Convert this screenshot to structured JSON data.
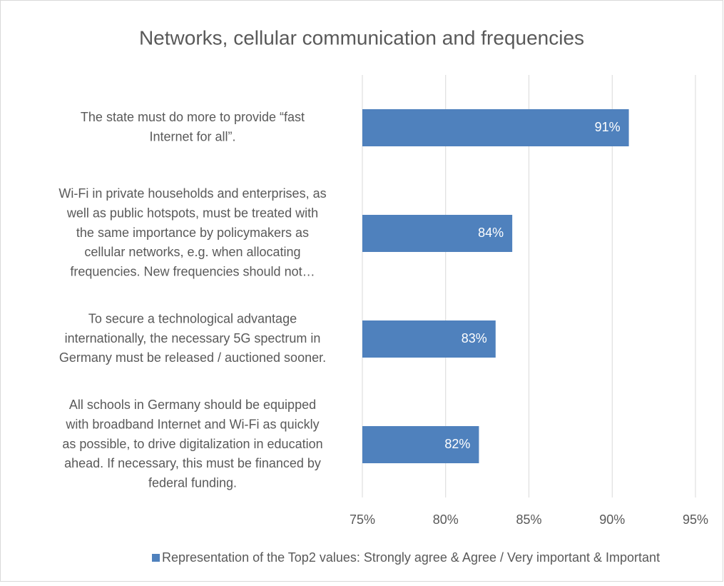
{
  "chart_data": {
    "type": "bar",
    "orientation": "horizontal",
    "title": "Networks, cellular communication and frequencies",
    "categories": [
      [
        "The state must do more to provide “fast",
        "Internet for all”."
      ],
      [
        "Wi-Fi in private households and enterprises, as",
        "well as public hotspots, must be treated with",
        "the same importance by policymakers as",
        "cellular networks, e.g. when allocating",
        "frequencies. New frequencies should not…"
      ],
      [
        "To secure a technological advantage",
        "internationally, the necessary 5G spectrum in",
        "Germany must be released / auctioned sooner."
      ],
      [
        "All schools in Germany should be equipped",
        "with broadband Internet and Wi-Fi as quickly",
        "as possible, to drive digitalization in education",
        "ahead. If necessary, this must be financed by",
        "federal funding."
      ]
    ],
    "series": [
      {
        "name": "Representation of the Top2 values: Strongly agree & Agree / Very important & Important",
        "color": "#4f81bd",
        "values": [
          91,
          84,
          83,
          82
        ],
        "value_labels": [
          "91%",
          "84%",
          "83%",
          "82%"
        ]
      }
    ],
    "xlim": [
      75,
      95
    ],
    "xticks": [
      {
        "value": 75,
        "label": "75%"
      },
      {
        "value": 80,
        "label": "80%"
      },
      {
        "value": 85,
        "label": "85%"
      },
      {
        "value": 90,
        "label": "90%"
      },
      {
        "value": 95,
        "label": "95%"
      }
    ],
    "grid": true,
    "legend": "bottom"
  }
}
